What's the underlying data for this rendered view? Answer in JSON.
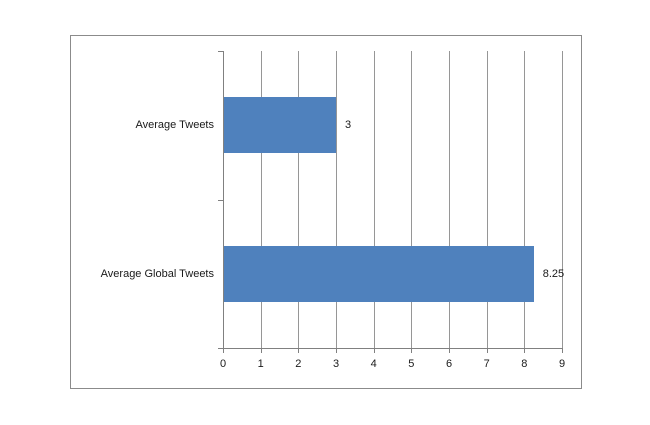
{
  "chart_data": {
    "type": "bar",
    "orientation": "horizontal",
    "title": "",
    "categories": [
      "Average Tweets",
      "Average Global Tweets"
    ],
    "values": [
      3,
      8.25
    ],
    "data_labels": [
      "3",
      "8.25"
    ],
    "xlabel": "",
    "ylabel": "",
    "xlim": [
      0,
      9
    ],
    "x_ticks": [
      "0",
      "1",
      "2",
      "3",
      "4",
      "5",
      "6",
      "7",
      "8",
      "9"
    ],
    "gridlines": "vertical-major",
    "legend": "none",
    "colors": {
      "bar": "#4F81BD",
      "gridline": "#969696",
      "axis": "#808080",
      "frame_border": "#8B8B8B",
      "text": "#1A1A1A",
      "background": "#FFFFFF"
    }
  }
}
